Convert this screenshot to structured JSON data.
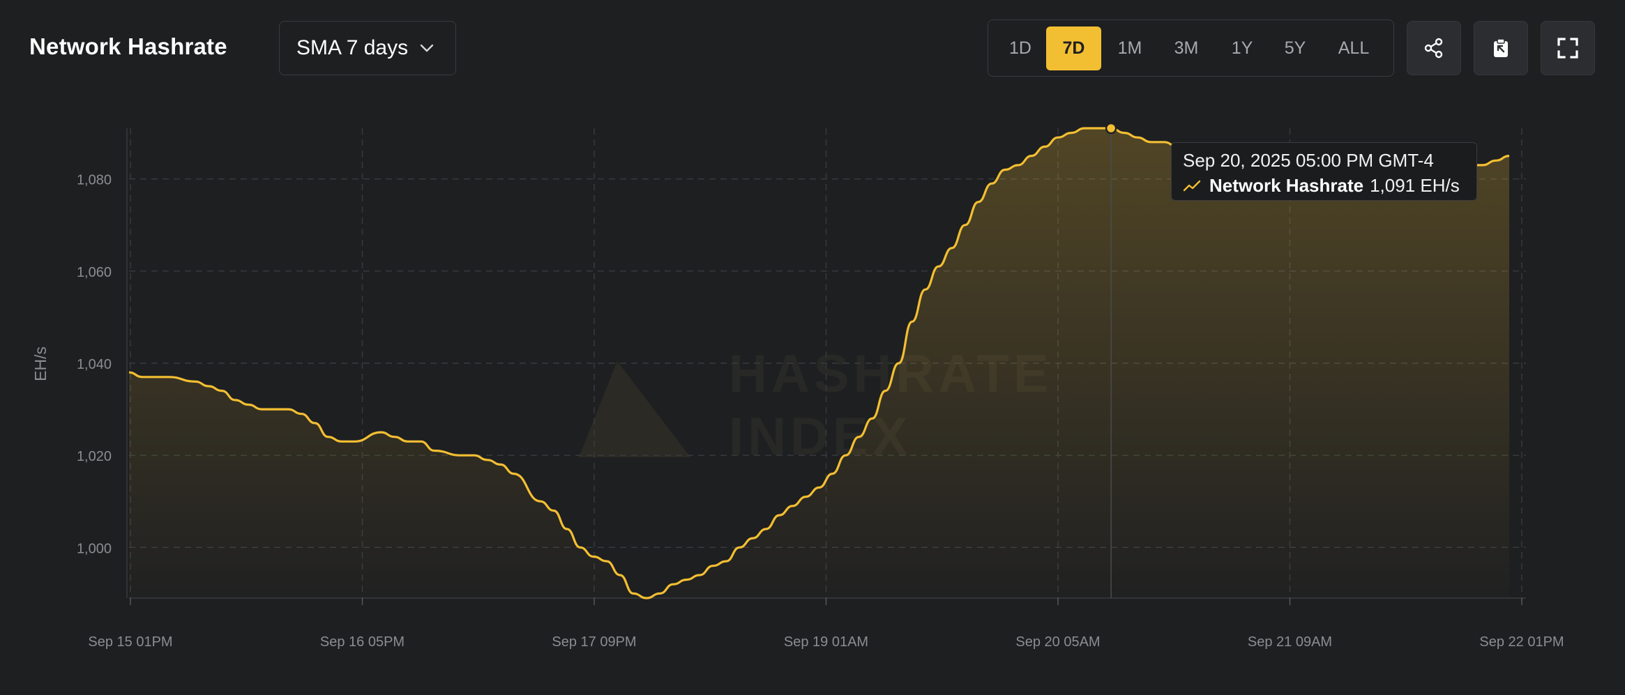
{
  "header": {
    "title": "Network Hashrate",
    "sma_select": {
      "value": "SMA 7 days"
    },
    "ranges": [
      {
        "label": "1D",
        "active": false
      },
      {
        "label": "7D",
        "active": true
      },
      {
        "label": "1M",
        "active": false
      },
      {
        "label": "3M",
        "active": false
      },
      {
        "label": "1Y",
        "active": false
      },
      {
        "label": "5Y",
        "active": false
      },
      {
        "label": "ALL",
        "active": false
      }
    ],
    "icons": [
      "share-icon",
      "clipboard-icon",
      "fullscreen-icon"
    ]
  },
  "watermark": {
    "line1": "HASHRATE",
    "line2": "INDEX"
  },
  "tooltip": {
    "date": "Sep 20, 2025 05:00 PM GMT-4",
    "series_name": "Network Hashrate",
    "value_text": "1,091 EH/s"
  },
  "colors": {
    "accent": "#f3bf32",
    "background": "#1e1f21",
    "grid": "#3a3b3f"
  },
  "chart_data": {
    "type": "area",
    "title": "Network Hashrate",
    "ylabel": "EH/s",
    "xlabel": "",
    "ylim": [
      989,
      1091
    ],
    "x_ticks": [
      "Sep 15 01PM",
      "Sep 16 05PM",
      "Sep 17 09PM",
      "Sep 19 01AM",
      "Sep 20 05AM",
      "Sep 21 09AM",
      "Sep 22 01PM"
    ],
    "y_ticks": [
      1000,
      1020,
      1040,
      1060,
      1080
    ],
    "y_tick_labels": [
      "1,000",
      "1,020",
      "1,040",
      "1,060",
      "1,080"
    ],
    "grid": true,
    "highlight": {
      "x_hours": 148,
      "value": 1091
    },
    "series": [
      {
        "name": "Network Hashrate",
        "x_hours": [
          0,
          2,
          4,
          6,
          10,
          12,
          14,
          16,
          18,
          20,
          24,
          26,
          28,
          30,
          32,
          34,
          38,
          40,
          42,
          44,
          46,
          50,
          52,
          54,
          56,
          58,
          62,
          64,
          66,
          68,
          70,
          72,
          74,
          76,
          78,
          80,
          82,
          84,
          86,
          88,
          90,
          92,
          94,
          96,
          98,
          100,
          102,
          104,
          106,
          108,
          110,
          112,
          114,
          116,
          118,
          120,
          122,
          124,
          126,
          128,
          130,
          132,
          134,
          136,
          138,
          140,
          142,
          144,
          146,
          148,
          150,
          152,
          154,
          156,
          158,
          160,
          164,
          170,
          176,
          180,
          184,
          186,
          188,
          192,
          194,
          196,
          198,
          200,
          202,
          204,
          206,
          208
        ],
        "values": [
          1038,
          1037,
          1037,
          1037,
          1036,
          1035,
          1034,
          1032,
          1031,
          1030,
          1030,
          1029,
          1027,
          1024,
          1023,
          1023,
          1025,
          1024,
          1023,
          1023,
          1021,
          1020,
          1020,
          1019,
          1018,
          1016,
          1010,
          1008,
          1004,
          1000,
          998,
          997,
          994,
          990,
          989,
          990,
          992,
          993,
          994,
          996,
          997,
          1000,
          1002,
          1004,
          1007,
          1009,
          1011,
          1013,
          1016,
          1020,
          1024,
          1028,
          1034,
          1040,
          1049,
          1056,
          1061,
          1065,
          1070,
          1075,
          1079,
          1082,
          1083,
          1085,
          1087,
          1089,
          1090,
          1091,
          1091,
          1091,
          1090,
          1089,
          1088,
          1088,
          1087,
          1086,
          1085,
          1084,
          1084,
          1083,
          1083,
          1082,
          1082,
          1082,
          1082,
          1082,
          1083,
          1083,
          1083,
          1083,
          1084,
          1085
        ]
      }
    ]
  }
}
